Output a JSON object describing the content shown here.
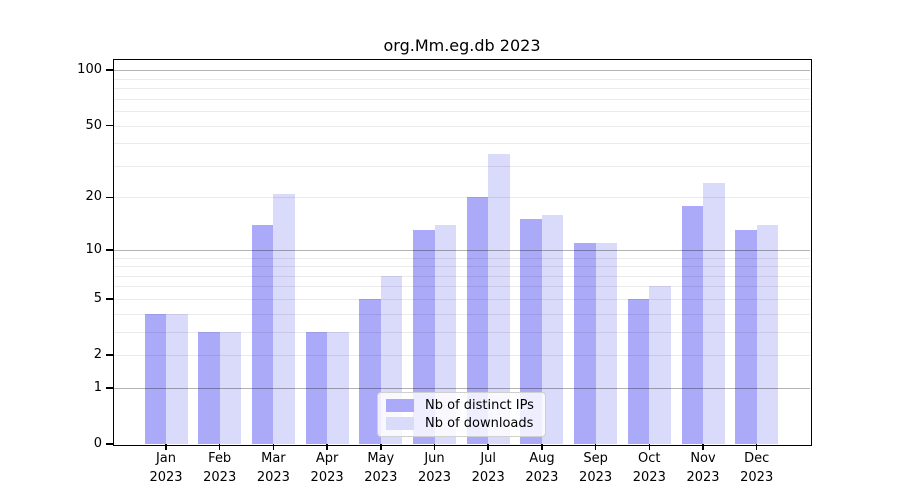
{
  "chart_data": {
    "type": "bar",
    "title": "org.Mm.eg.db 2023",
    "categories": [
      "Jan",
      "Feb",
      "Mar",
      "Apr",
      "May",
      "Jun",
      "Jul",
      "Aug",
      "Sep",
      "Oct",
      "Nov",
      "Dec"
    ],
    "x_tick_year": "2023",
    "series": [
      {
        "name": "Nb of distinct IPs",
        "color": "#aaaaf8",
        "values": [
          4,
          3,
          14,
          3,
          5,
          13,
          20,
          15,
          11,
          5,
          18,
          13
        ]
      },
      {
        "name": "Nb of downloads",
        "color": "#dadafa",
        "values": [
          4,
          3,
          21,
          3,
          7,
          14,
          35,
          16,
          11,
          6,
          24,
          14
        ]
      }
    ],
    "y_scale": "log10(1+y)",
    "y_tick_labels": [
      "100",
      "50",
      "20",
      "10",
      "5",
      "2",
      "1",
      "0"
    ],
    "y_tick_values": [
      100,
      50,
      20,
      10,
      5,
      2,
      1,
      0
    ],
    "y_grid_major": [
      1,
      10,
      100
    ],
    "y_grid_minor": [
      2,
      3,
      4,
      5,
      6,
      7,
      8,
      9,
      20,
      30,
      40,
      50,
      60,
      70,
      80,
      90
    ],
    "ylim": [
      0,
      113
    ],
    "grid": "on",
    "legend_position": "lower center"
  },
  "colors": {
    "background": "#ffffff",
    "axis": "#000000",
    "grid_major": "rgba(0,0,0,0.30)",
    "grid_minor": "rgba(0,0,0,0.08)",
    "legend_border": "#d0d0d0"
  }
}
